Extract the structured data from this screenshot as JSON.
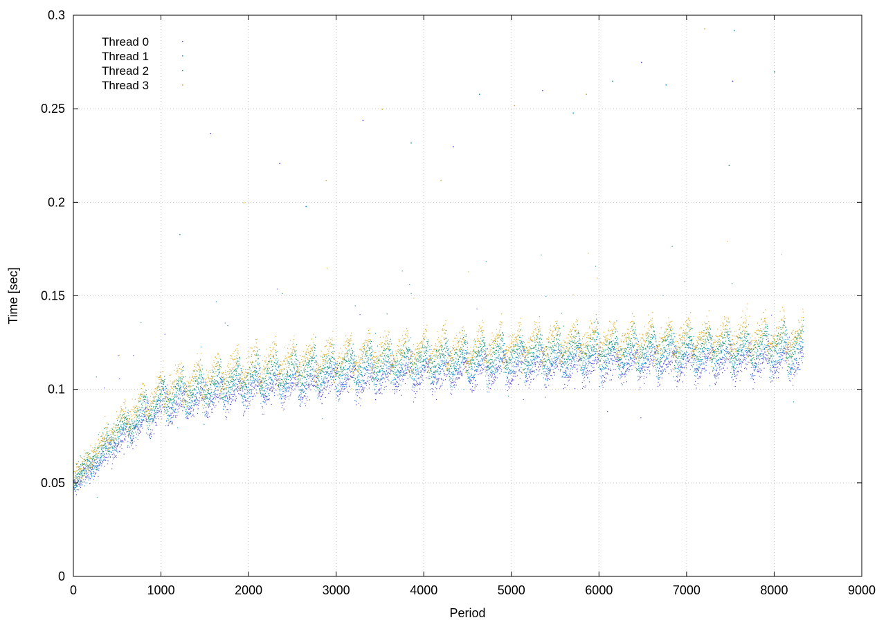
{
  "chart_data": {
    "type": "scatter",
    "title": "",
    "xlabel": "Period",
    "ylabel": "Time [sec]",
    "xlim": [
      0,
      9000
    ],
    "ylim": [
      0,
      0.3
    ],
    "x_ticks": [
      0,
      1000,
      2000,
      3000,
      4000,
      5000,
      6000,
      7000,
      8000,
      9000
    ],
    "x_tick_labels": [
      "0",
      "1000",
      "2000",
      "3000",
      "4000",
      "5000",
      "6000",
      "7000",
      "8000",
      "9000"
    ],
    "y_ticks": [
      0,
      0.05,
      0.1,
      0.15,
      0.2,
      0.25,
      0.3
    ],
    "y_tick_labels": [
      "0",
      "0.05",
      "0.1",
      "0.15",
      "0.2",
      "0.25",
      "0.3"
    ],
    "grid": true,
    "legend_position": "top-left",
    "period_range": [
      0,
      8330
    ],
    "series": [
      {
        "name": "Thread 0",
        "color": "#5a4fd6",
        "baseline": [
          [
            0,
            0.048
          ],
          [
            500,
            0.07
          ],
          [
            1000,
            0.087
          ],
          [
            2000,
            0.097
          ],
          [
            3000,
            0.102
          ],
          [
            4000,
            0.106
          ],
          [
            5000,
            0.109
          ],
          [
            6000,
            0.111
          ],
          [
            7000,
            0.112
          ],
          [
            8330,
            0.113
          ]
        ],
        "sawtooth_amplitude": 0.014,
        "outliers": [
          [
            1560,
            0.237
          ],
          [
            2350,
            0.221
          ],
          [
            3300,
            0.244
          ],
          [
            4330,
            0.23
          ],
          [
            5350,
            0.26
          ],
          [
            6480,
            0.275
          ],
          [
            7520,
            0.265
          ]
        ]
      },
      {
        "name": "Thread 1",
        "color": "#1f9ad0",
        "baseline": [
          [
            0,
            0.05
          ],
          [
            500,
            0.073
          ],
          [
            1000,
            0.09
          ],
          [
            2000,
            0.101
          ],
          [
            3000,
            0.106
          ],
          [
            4000,
            0.11
          ],
          [
            5000,
            0.113
          ],
          [
            6000,
            0.115
          ],
          [
            7000,
            0.116
          ],
          [
            8330,
            0.117
          ]
        ],
        "sawtooth_amplitude": 0.016,
        "outliers": [
          [
            2650,
            0.198
          ],
          [
            4630,
            0.258
          ],
          [
            5700,
            0.248
          ],
          [
            6760,
            0.263
          ],
          [
            7540,
            0.292
          ]
        ]
      },
      {
        "name": "Thread 2",
        "color": "#1e9a6f",
        "baseline": [
          [
            0,
            0.052
          ],
          [
            500,
            0.077
          ],
          [
            1000,
            0.094
          ],
          [
            2000,
            0.106
          ],
          [
            3000,
            0.111
          ],
          [
            4000,
            0.115
          ],
          [
            5000,
            0.118
          ],
          [
            6000,
            0.12
          ],
          [
            7000,
            0.121
          ],
          [
            8330,
            0.122
          ]
        ],
        "sawtooth_amplitude": 0.016,
        "outliers": [
          [
            1210,
            0.183
          ],
          [
            3850,
            0.232
          ],
          [
            6150,
            0.265
          ],
          [
            7480,
            0.22
          ],
          [
            8000,
            0.27
          ]
        ]
      },
      {
        "name": "Thread 3",
        "color": "#e0b030",
        "baseline": [
          [
            0,
            0.054
          ],
          [
            500,
            0.08
          ],
          [
            1000,
            0.098
          ],
          [
            2000,
            0.11
          ],
          [
            3000,
            0.115
          ],
          [
            4000,
            0.119
          ],
          [
            5000,
            0.122
          ],
          [
            6000,
            0.124
          ],
          [
            7000,
            0.125
          ],
          [
            8330,
            0.126
          ]
        ],
        "sawtooth_amplitude": 0.018,
        "outliers": [
          [
            1940,
            0.2
          ],
          [
            2880,
            0.212
          ],
          [
            3520,
            0.25
          ],
          [
            4190,
            0.212
          ],
          [
            5030,
            0.252
          ],
          [
            5850,
            0.258
          ],
          [
            7200,
            0.293
          ]
        ]
      }
    ]
  }
}
